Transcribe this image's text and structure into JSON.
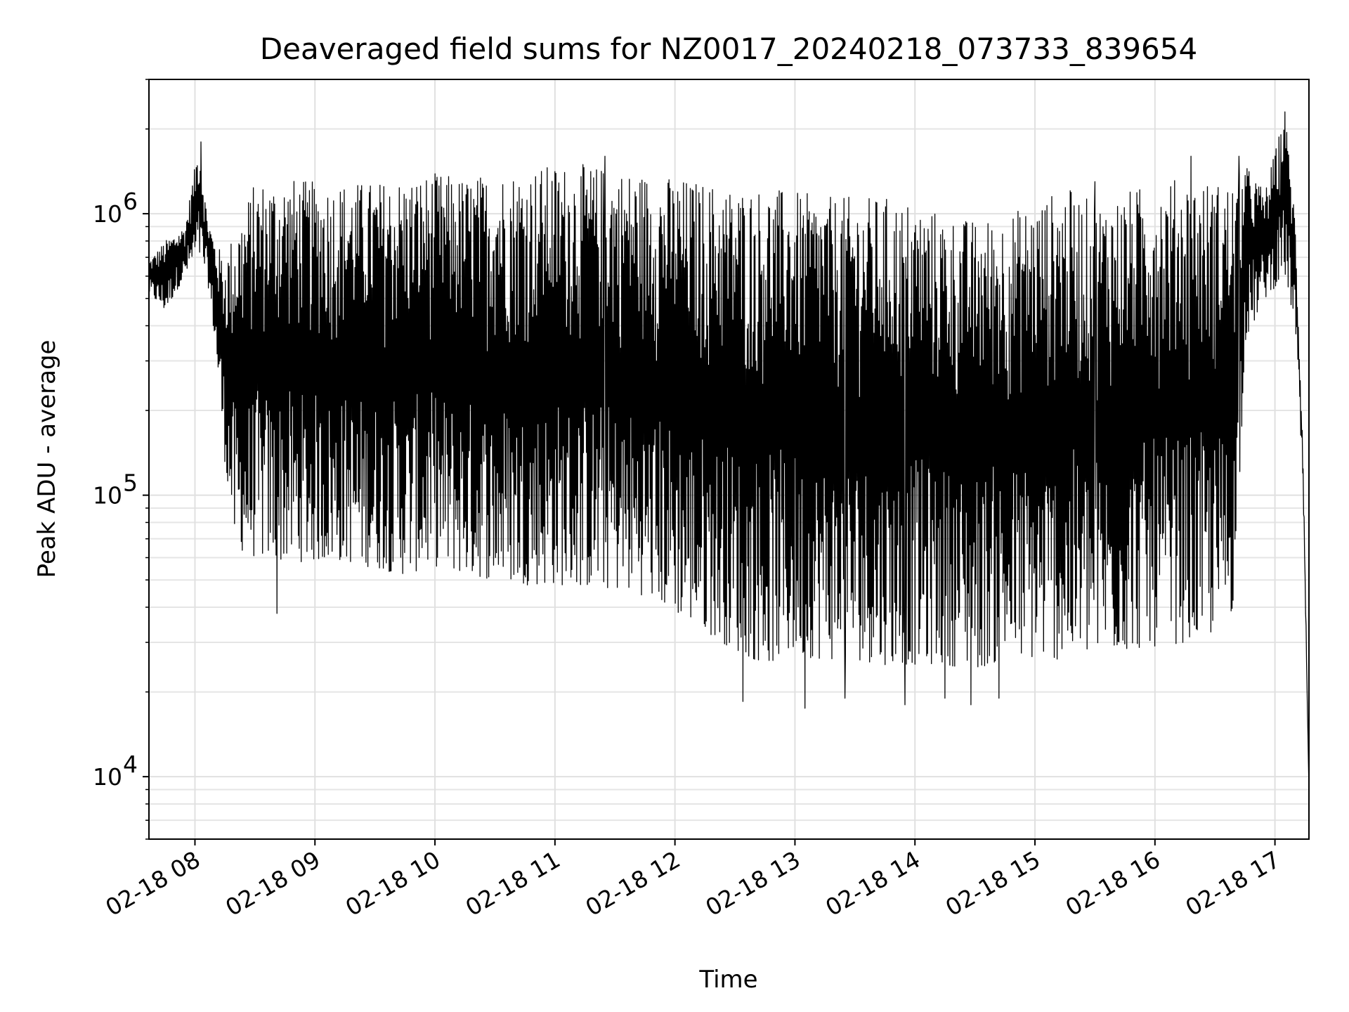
{
  "chart_data": {
    "type": "line",
    "title": "Deaveraged field sums for NZ0017_20240218_073733_839654",
    "xlabel": "Time",
    "ylabel": "Peak ADU - average",
    "yscale": "log",
    "ylim": [
      6000,
      3000000
    ],
    "xlim": [
      "2024-02-18 07:37",
      "2024-02-18 17:17"
    ],
    "grid": true,
    "line_color": "#000000",
    "x_ticks": [
      {
        "value": "2024-02-18 08:00",
        "label": "02-18 08"
      },
      {
        "value": "2024-02-18 09:00",
        "label": "02-18 09"
      },
      {
        "value": "2024-02-18 10:00",
        "label": "02-18 10"
      },
      {
        "value": "2024-02-18 11:00",
        "label": "02-18 11"
      },
      {
        "value": "2024-02-18 12:00",
        "label": "02-18 12"
      },
      {
        "value": "2024-02-18 13:00",
        "label": "02-18 13"
      },
      {
        "value": "2024-02-18 14:00",
        "label": "02-18 14"
      },
      {
        "value": "2024-02-18 15:00",
        "label": "02-18 15"
      },
      {
        "value": "2024-02-18 16:00",
        "label": "02-18 16"
      },
      {
        "value": "2024-02-18 17:00",
        "label": "02-18 17"
      }
    ],
    "y_ticks": [
      {
        "value": 10000,
        "base": "10",
        "exp": "4"
      },
      {
        "value": 100000,
        "base": "10",
        "exp": "5"
      },
      {
        "value": 1000000,
        "base": "10",
        "exp": "6"
      }
    ],
    "series": [
      {
        "envelope": {
          "time": [
            "07:37",
            "07:45",
            "07:55",
            "08:02",
            "08:06",
            "08:10",
            "08:15",
            "08:20",
            "08:30",
            "08:45",
            "09:00",
            "09:15",
            "09:30",
            "09:45",
            "10:00",
            "10:15",
            "10:30",
            "10:45",
            "11:00",
            "11:15",
            "11:30",
            "11:45",
            "12:00",
            "12:15",
            "12:30",
            "12:45",
            "13:00",
            "13:15",
            "13:30",
            "13:45",
            "14:00",
            "14:15",
            "14:30",
            "14:45",
            "15:00",
            "15:15",
            "15:30",
            "15:45",
            "16:00",
            "16:15",
            "16:30",
            "16:40",
            "16:45",
            "16:55",
            "17:05",
            "17:10",
            "17:14",
            "17:17"
          ],
          "upper": [
            680000,
            800000,
            900000,
            1800000,
            1000000,
            800000,
            700000,
            900000,
            1300000,
            1350000,
            1300000,
            1300000,
            1300000,
            1350000,
            1400000,
            1350000,
            1400000,
            1450000,
            1500000,
            1500000,
            1450000,
            1400000,
            1350000,
            1300000,
            1250000,
            1250000,
            1200000,
            1150000,
            1150000,
            1150000,
            1100000,
            1000000,
            950000,
            1000000,
            1100000,
            1250000,
            1100000,
            1200000,
            1300000,
            1350000,
            1300000,
            1300000,
            1500000,
            1200000,
            2300000,
            1000000,
            150000,
            9000
          ],
          "lower": [
            520000,
            450000,
            600000,
            700000,
            600000,
            350000,
            130000,
            65000,
            60000,
            58000,
            58000,
            58000,
            55000,
            52000,
            56000,
            52000,
            50000,
            48000,
            48000,
            47000,
            46000,
            44000,
            38000,
            33000,
            28000,
            25000,
            27000,
            26000,
            26000,
            25000,
            25000,
            25000,
            24000,
            26000,
            26000,
            26000,
            27000,
            28000,
            29000,
            30000,
            32000,
            40000,
            350000,
            500000,
            600000,
            400000,
            110000,
            9000
          ]
        },
        "spikes_down": [
          {
            "time": "08:41",
            "value": 38000
          },
          {
            "time": "12:34",
            "value": 18500
          },
          {
            "time": "13:05",
            "value": 17500
          },
          {
            "time": "13:25",
            "value": 19000
          },
          {
            "time": "13:55",
            "value": 18000
          },
          {
            "time": "14:15",
            "value": 19000
          },
          {
            "time": "14:28",
            "value": 18000
          },
          {
            "time": "14:42",
            "value": 19000
          }
        ],
        "spikes_up": [
          {
            "time": "08:03",
            "value": 1800000
          },
          {
            "time": "11:25",
            "value": 1600000
          },
          {
            "time": "15:30",
            "value": 1300000
          },
          {
            "time": "16:18",
            "value": 1600000
          },
          {
            "time": "16:42",
            "value": 1600000
          },
          {
            "time": "17:05",
            "value": 2300000
          }
        ]
      }
    ]
  }
}
